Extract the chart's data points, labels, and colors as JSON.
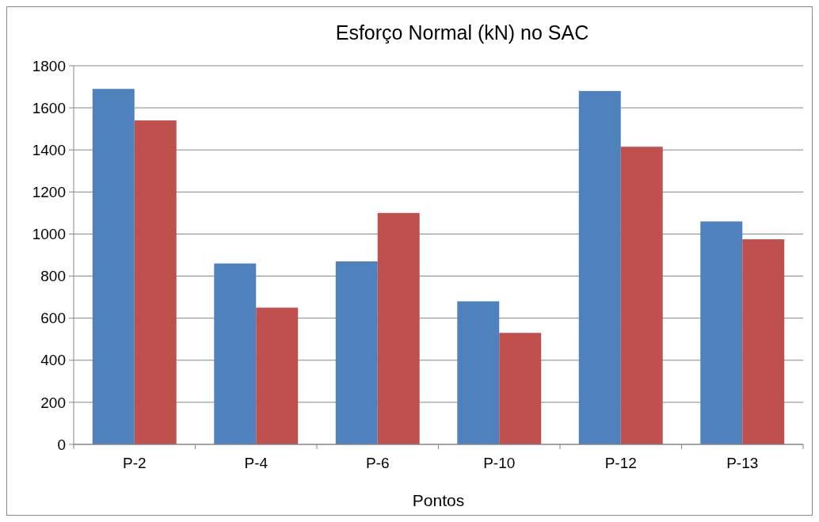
{
  "chart_data": {
    "type": "bar",
    "title": "Esforço Normal (kN) no SAC",
    "xlabel": "Pontos",
    "categories": [
      "P-2",
      "P-4",
      "P-6",
      "P-10",
      "P-12",
      "P-13"
    ],
    "series": [
      {
        "color": "#4f81bd",
        "values": [
          1690,
          860,
          870,
          680,
          1680,
          1060
        ]
      },
      {
        "color": "#c0504d",
        "values": [
          1540,
          650,
          1100,
          530,
          1415,
          975
        ]
      }
    ],
    "ylim": [
      0,
      1800
    ],
    "yticks": [
      0,
      200,
      400,
      600,
      800,
      1000,
      1200,
      1400,
      1600,
      1800
    ],
    "grid": "y"
  }
}
